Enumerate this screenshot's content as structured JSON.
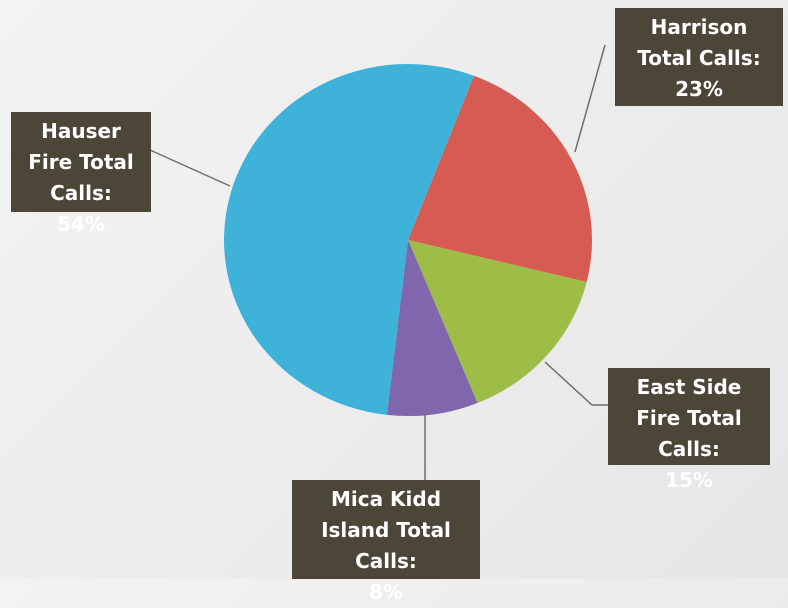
{
  "chart_data": {
    "type": "pie",
    "categories": [
      "Harrison Total Calls:",
      "East Side Fire Total Calls:",
      "Mica Kidd Island Total Calls:",
      "Hauser Fire Total Calls:"
    ],
    "values": [
      23,
      15,
      8,
      54
    ],
    "value_labels": [
      "23%",
      "15%",
      "8%",
      "54%"
    ],
    "colors": [
      "#d65b52",
      "#9dbd47",
      "#8066ac",
      "#3fb2da"
    ]
  }
}
